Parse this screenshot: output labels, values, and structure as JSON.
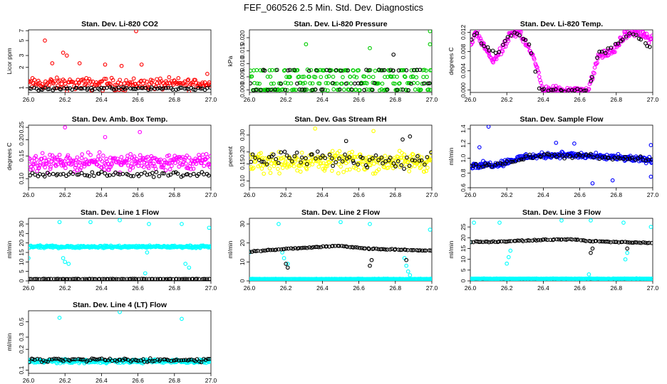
{
  "title": "FEF_060526  2.5 Min. Std. Dev. Diagnostics",
  "colors": {
    "red": "#ff0000",
    "green": "#00cc00",
    "magenta": "#ff00ff",
    "yellow": "#ffff00",
    "blue": "#0000ff",
    "cyan": "#00ffff",
    "black": "#000000"
  },
  "chart_data": [
    {
      "type": "scatter",
      "title": "Stan. Dev. Li-820 CO2",
      "xlabel": "",
      "ylabel": "Licor ppm",
      "xlim": [
        26.0,
        27.0
      ],
      "ylim": [
        0.85,
        7.2
      ],
      "log_y": true,
      "xticks": [
        "26.0",
        "26.2",
        "26.4",
        "26.6",
        "26.8",
        "27.0"
      ],
      "yticks": [
        "1",
        "2",
        "3",
        "5",
        "7"
      ],
      "series": [
        {
          "color": "red",
          "kind": "noise",
          "x_range": [
            26.0,
            27.0
          ],
          "base": 1.15,
          "spread": 0.35,
          "count": 190,
          "outliers": [
            [
              26.09,
              5.0
            ],
            [
              26.59,
              6.9
            ],
            [
              26.19,
              3.3
            ],
            [
              26.21,
              3.0
            ],
            [
              26.13,
              2.3
            ],
            [
              26.28,
              2.3
            ],
            [
              26.42,
              2.2
            ],
            [
              26.51,
              2.1
            ],
            [
              26.62,
              2.2
            ],
            [
              26.98,
              1.6
            ]
          ]
        },
        {
          "color": "black",
          "kind": "noise",
          "x_range": [
            26.0,
            27.0
          ],
          "base": 0.97,
          "spread": 0.07,
          "count": 80
        }
      ]
    },
    {
      "type": "scatter",
      "title": "Stan. Dev. Li-820 Pressure",
      "xlabel": "",
      "ylabel": "kPa",
      "xlim": [
        26.0,
        27.0
      ],
      "ylim": [
        -0.001,
        0.023
      ],
      "log_y": false,
      "xticks": [
        "26.0",
        "26.2",
        "26.4",
        "26.6",
        "26.8",
        "27.0"
      ],
      "yticks": [
        "0.000",
        "0.005",
        "0.010",
        "0.015",
        "0.020"
      ],
      "series": [
        {
          "color": "green",
          "kind": "bands",
          "x_range": [
            26.0,
            27.0
          ],
          "levels": [
            0.0,
            0.0025,
            0.005,
            0.0075
          ],
          "count": 230,
          "outliers": [
            [
              26.31,
              0.0175
            ],
            [
              26.66,
              0.016
            ],
            [
              26.99,
              0.0225
            ],
            [
              26.99,
              0.0175
            ]
          ]
        },
        {
          "color": "black",
          "kind": "bands",
          "x_range": [
            26.0,
            27.0
          ],
          "levels": [
            0.0,
            0.0025,
            0.0075
          ],
          "count": 60,
          "outliers": [
            [
              26.79,
              0.0135
            ]
          ]
        }
      ]
    },
    {
      "type": "scatter",
      "title": "Stan. Dev. Li-820 Temp.",
      "xlabel": "",
      "ylabel": "degrees C",
      "xlim": [
        26.0,
        27.0
      ],
      "ylim": [
        -0.0005,
        0.0125
      ],
      "log_y": false,
      "xticks": [
        "26.0",
        "26.2",
        "26.4",
        "26.6",
        "26.8",
        "27.0"
      ],
      "yticks": [
        "0.000",
        "0.004",
        "0.008",
        "0.012"
      ],
      "series": [
        {
          "color": "magenta",
          "kind": "curve",
          "count": 260,
          "spread": 0.0012,
          "knots": [
            [
              26.0,
              0.009
            ],
            [
              26.03,
              0.012
            ],
            [
              26.07,
              0.0095
            ],
            [
              26.12,
              0.006
            ],
            [
              26.17,
              0.008
            ],
            [
              26.22,
              0.0115
            ],
            [
              26.27,
              0.012
            ],
            [
              26.32,
              0.009
            ],
            [
              26.37,
              0.004
            ],
            [
              26.4,
              0.0
            ],
            [
              26.65,
              0.0
            ],
            [
              26.7,
              0.007
            ],
            [
              26.78,
              0.008
            ],
            [
              26.85,
              0.0115
            ],
            [
              26.92,
              0.012
            ],
            [
              27.0,
              0.0105
            ]
          ]
        },
        {
          "color": "black",
          "kind": "curve",
          "count": 60,
          "spread": 0.0008,
          "knots": [
            [
              26.0,
              0.01
            ],
            [
              26.03,
              0.012
            ],
            [
              26.08,
              0.009
            ],
            [
              26.14,
              0.0075
            ],
            [
              26.2,
              0.0105
            ],
            [
              26.26,
              0.012
            ],
            [
              26.32,
              0.0095
            ],
            [
              26.38,
              0.0
            ],
            [
              26.65,
              0.0
            ],
            [
              26.7,
              0.0075
            ],
            [
              26.8,
              0.0095
            ],
            [
              26.88,
              0.012
            ],
            [
              27.0,
              0.0085
            ]
          ]
        }
      ]
    },
    {
      "type": "scatter",
      "title": "Stan. Dev. Amb. Box Temp.",
      "xlabel": "",
      "ylabel": "degrees C",
      "xlim": [
        26.0,
        27.0
      ],
      "ylim": [
        0.085,
        0.26
      ],
      "log_y": true,
      "xticks": [
        "26.0",
        "26.2",
        "26.4",
        "26.6",
        "26.8",
        "27.0"
      ],
      "yticks": [
        "0.10",
        "0.15",
        "0.20",
        "0.25"
      ],
      "series": [
        {
          "color": "magenta",
          "kind": "noise",
          "x_range": [
            26.0,
            27.0
          ],
          "base": 0.135,
          "spread": 0.028,
          "count": 280,
          "outliers": [
            [
              26.2,
              0.25
            ],
            [
              26.61,
              0.23
            ],
            [
              26.42,
              0.21
            ]
          ]
        },
        {
          "color": "black",
          "kind": "noise",
          "x_range": [
            26.0,
            27.0
          ],
          "base": 0.108,
          "spread": 0.007,
          "count": 70
        }
      ]
    },
    {
      "type": "scatter",
      "title": "Stan. Dev. Gas Stream RH",
      "xlabel": "",
      "ylabel": "percent",
      "xlim": [
        26.0,
        27.0
      ],
      "ylim": [
        0.085,
        0.38
      ],
      "log_y": true,
      "xticks": [
        "26.0",
        "26.2",
        "26.4",
        "26.6",
        "26.8",
        "27.0"
      ],
      "yticks": [
        "0.10",
        "0.15",
        "0.20",
        "0.30"
      ],
      "series": [
        {
          "color": "yellow",
          "kind": "noise",
          "x_range": [
            26.0,
            27.0
          ],
          "base": 0.16,
          "spread": 0.055,
          "count": 280,
          "outliers": [
            [
              26.36,
              0.35
            ],
            [
              26.68,
              0.33
            ]
          ]
        },
        {
          "color": "black",
          "kind": "noise",
          "x_range": [
            26.0,
            27.0
          ],
          "base": 0.17,
          "spread": 0.045,
          "count": 70,
          "outliers": [
            [
              26.88,
              0.29
            ],
            [
              26.84,
              0.27
            ],
            [
              26.53,
              0.26
            ]
          ]
        }
      ]
    },
    {
      "type": "scatter",
      "title": "Stan. Dev. Sample Flow",
      "xlabel": "",
      "ylabel": "ml/min",
      "xlim": [
        26.0,
        27.0
      ],
      "ylim": [
        0.6,
        1.45
      ],
      "log_y": false,
      "xticks": [
        "26.0",
        "26.2",
        "26.4",
        "26.6",
        "26.8",
        "27.0"
      ],
      "yticks": [
        "0.6",
        "0.8",
        "1.0",
        "1.2",
        "1.4"
      ],
      "series": [
        {
          "color": "blue",
          "kind": "curve",
          "count": 300,
          "spread": 0.06,
          "knots": [
            [
              26.0,
              0.9
            ],
            [
              26.15,
              0.92
            ],
            [
              26.3,
              1.02
            ],
            [
              26.5,
              1.05
            ],
            [
              26.7,
              1.02
            ],
            [
              26.85,
              1.0
            ],
            [
              27.0,
              0.97
            ]
          ],
          "outliers": [
            [
              26.1,
              1.43
            ],
            [
              26.05,
              1.15
            ],
            [
              26.57,
              1.2
            ],
            [
              26.99,
              1.18
            ],
            [
              26.78,
              0.7
            ],
            [
              26.67,
              0.66
            ],
            [
              26.99,
              0.75
            ],
            [
              26.47,
              1.21
            ]
          ]
        },
        {
          "color": "black",
          "kind": "curve",
          "count": 70,
          "spread": 0.05,
          "knots": [
            [
              26.0,
              0.9
            ],
            [
              26.2,
              0.94
            ],
            [
              26.35,
              1.03
            ],
            [
              26.6,
              1.03
            ],
            [
              26.8,
              1.0
            ],
            [
              27.0,
              0.98
            ]
          ]
        }
      ]
    },
    {
      "type": "scatter",
      "title": "Stan. Dev. Line 1 Flow",
      "xlabel": "",
      "ylabel": "ml/min",
      "xlim": [
        26.0,
        27.0
      ],
      "ylim": [
        0,
        33
      ],
      "log_y": false,
      "xticks": [
        "26.0",
        "26.2",
        "26.4",
        "26.6",
        "26.8",
        "27.0"
      ],
      "yticks": [
        "0",
        "5",
        "10",
        "15",
        "20",
        "25",
        "30"
      ],
      "series": [
        {
          "color": "cyan",
          "kind": "noise",
          "x_range": [
            26.0,
            27.0
          ],
          "base": 18,
          "spread": 0.9,
          "count": 300,
          "outliers": [
            [
              26.17,
              31
            ],
            [
              26.34,
              31
            ],
            [
              26.5,
              32
            ],
            [
              26.66,
              30
            ],
            [
              26.84,
              30
            ],
            [
              26.99,
              28
            ],
            [
              26.2,
              10
            ],
            [
              26.22,
              9
            ],
            [
              26.19,
              12
            ],
            [
              26.64,
              4
            ],
            [
              26.88,
              7
            ],
            [
              26.86,
              9
            ],
            [
              26.0,
              12
            ],
            [
              26.65,
              15
            ]
          ]
        },
        {
          "color": "black",
          "kind": "noise",
          "x_range": [
            26.0,
            27.0
          ],
          "base": 1.0,
          "spread": 0.15,
          "count": 90
        }
      ]
    },
    {
      "type": "scatter",
      "title": "Stan. Dev. Line 2 Flow",
      "xlabel": "",
      "ylabel": "ml/min",
      "xlim": [
        26.0,
        27.0
      ],
      "ylim": [
        0,
        33
      ],
      "log_y": false,
      "xticks": [
        "26.0",
        "26.2",
        "26.4",
        "26.6",
        "26.8",
        "27.0"
      ],
      "yticks": [
        "0",
        "10",
        "20",
        "30"
      ],
      "series": [
        {
          "color": "cyan",
          "kind": "noise",
          "x_range": [
            26.0,
            27.0
          ],
          "base": 1.0,
          "spread": 0.2,
          "count": 300,
          "outliers": [
            [
              26.16,
              30
            ],
            [
              26.5,
              31
            ],
            [
              26.99,
              27
            ],
            [
              26.66,
              30
            ],
            [
              26.19,
              12
            ],
            [
              26.21,
              9
            ],
            [
              26.18,
              15
            ],
            [
              26.86,
              8
            ],
            [
              26.87,
              5
            ],
            [
              26.88,
              3
            ],
            [
              26.85,
              12
            ],
            [
              26.0,
              15
            ]
          ]
        },
        {
          "color": "black",
          "kind": "curve",
          "count": 90,
          "spread": 0.4,
          "knots": [
            [
              26.0,
              15.5
            ],
            [
              26.15,
              16.5
            ],
            [
              26.3,
              17.5
            ],
            [
              26.5,
              18.5
            ],
            [
              26.65,
              17
            ],
            [
              26.8,
              16.5
            ],
            [
              27.0,
              16
            ]
          ],
          "outliers": [
            [
              26.21,
              7
            ],
            [
              26.2,
              9
            ],
            [
              26.66,
              8
            ],
            [
              26.67,
              11
            ],
            [
              26.86,
              11
            ]
          ]
        }
      ]
    },
    {
      "type": "scatter",
      "title": "Stan. Dev. Line 3 Flow",
      "xlabel": "",
      "ylabel": "ml/min",
      "xlim": [
        26.0,
        27.0
      ],
      "ylim": [
        0,
        29
      ],
      "log_y": false,
      "xticks": [
        "26.0",
        "26.2",
        "26.4",
        "26.6",
        "26.8",
        "27.0"
      ],
      "yticks": [
        "0",
        "5",
        "10",
        "15",
        "20",
        "25"
      ],
      "series": [
        {
          "color": "cyan",
          "kind": "noise",
          "x_range": [
            26.0,
            27.0
          ],
          "base": 1.0,
          "spread": 0.2,
          "count": 300,
          "outliers": [
            [
              26.02,
              27
            ],
            [
              26.16,
              27
            ],
            [
              26.5,
              28
            ],
            [
              26.66,
              28
            ],
            [
              26.84,
              27
            ],
            [
              26.99,
              25
            ],
            [
              26.2,
              8
            ],
            [
              26.21,
              11
            ],
            [
              26.22,
              14
            ],
            [
              26.85,
              10
            ],
            [
              26.86,
              13
            ],
            [
              26.65,
              3
            ],
            [
              26.0,
              18
            ]
          ]
        },
        {
          "color": "black",
          "kind": "curve",
          "count": 90,
          "spread": 0.35,
          "knots": [
            [
              26.0,
              18
            ],
            [
              26.2,
              18.3
            ],
            [
              26.4,
              19
            ],
            [
              26.55,
              19.3
            ],
            [
              26.65,
              18.5
            ],
            [
              26.8,
              18
            ],
            [
              27.0,
              17.5
            ]
          ],
          "outliers": [
            [
              26.66,
              13
            ],
            [
              26.67,
              15
            ],
            [
              26.86,
              15
            ]
          ]
        }
      ]
    },
    {
      "type": "scatter",
      "title": "Stan. Dev. Line 4 (LT) Flow",
      "xlabel": "",
      "ylabel": "ml/min",
      "xlim": [
        26.0,
        27.0
      ],
      "ylim": [
        0.09,
        0.72
      ],
      "log_y": true,
      "xticks": [
        "26.0",
        "26.2",
        "26.4",
        "26.6",
        "26.8",
        "27.0"
      ],
      "yticks": [
        "0.1",
        "0.2",
        "0.3",
        "0.5"
      ],
      "series": [
        {
          "color": "cyan",
          "kind": "noise",
          "x_range": [
            26.0,
            27.0
          ],
          "base": 0.135,
          "spread": 0.012,
          "count": 280,
          "outliers": [
            [
              26.17,
              0.57
            ],
            [
              26.5,
              0.69
            ],
            [
              26.84,
              0.55
            ]
          ]
        },
        {
          "color": "black",
          "kind": "noise",
          "x_range": [
            26.0,
            27.0
          ],
          "base": 0.14,
          "spread": 0.012,
          "count": 90
        }
      ]
    }
  ]
}
